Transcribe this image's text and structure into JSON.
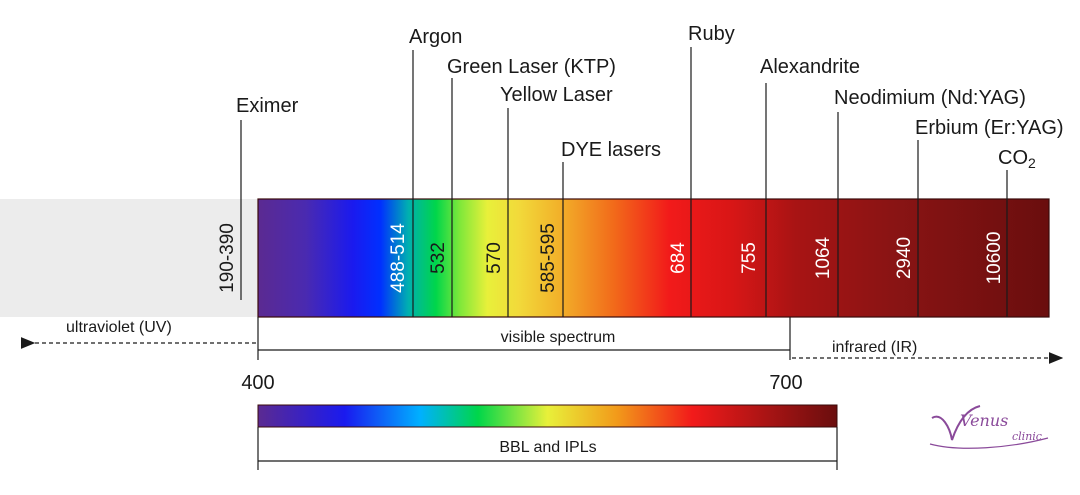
{
  "lasers": [
    {
      "name": "Eximer",
      "wavelength": "190-390"
    },
    {
      "name": "Argon",
      "wavelength": "488-514"
    },
    {
      "name": "Green Laser (KTP)",
      "wavelength": "532"
    },
    {
      "name": "Yellow Laser",
      "wavelength": "570"
    },
    {
      "name": "DYE lasers",
      "wavelength": "585-595"
    },
    {
      "name": "Ruby",
      "wavelength": "684"
    },
    {
      "name": "Alexandrite",
      "wavelength": "755"
    },
    {
      "name": "Neodimium (Nd:YAG)",
      "wavelength": "1064"
    },
    {
      "name": "Erbium (Er:YAG)",
      "wavelength": "2940"
    },
    {
      "name": "CO",
      "subscript": "2",
      "wavelength": "10600"
    }
  ],
  "regions": {
    "uv": "ultraviolet (UV)",
    "visible": "visible spectrum",
    "ir": "infrared (IR)"
  },
  "ticks": {
    "start": "400",
    "end": "700"
  },
  "bbl_label": "BBL and IPLs",
  "logo": {
    "main": "Venus",
    "sub": "clinic"
  },
  "colors": {
    "violet": "#5b2a91",
    "blue": "#0018ff",
    "green": "#00d64a",
    "yellow": "#f2e23a",
    "orange": "#f29a1a",
    "red": "#f21a1a",
    "dark_red": "#8a1414",
    "darkest_red": "#6a0e0e",
    "uv_band": "#ececec",
    "logo": "#8a4a9a"
  }
}
